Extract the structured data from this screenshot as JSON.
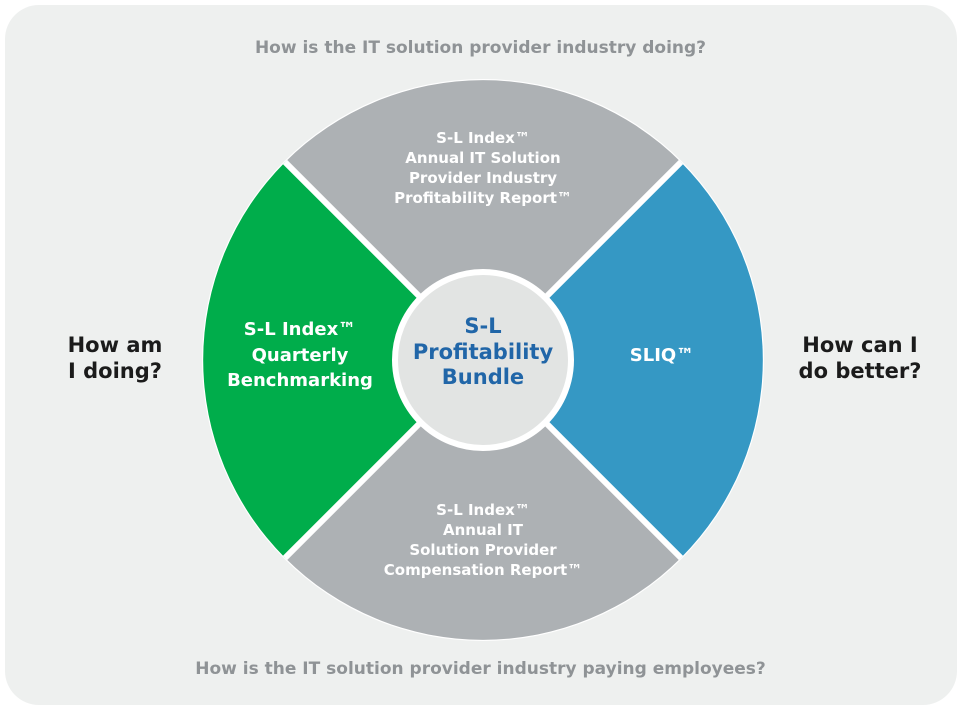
{
  "questions": {
    "top": "How is the IT solution provider industry doing?",
    "bottom": "How is the IT solution provider industry paying employees?",
    "left_line1": "How am",
    "left_line2": "I doing?",
    "right_line1": "How can I",
    "right_line2": "do better?"
  },
  "center": {
    "line1": "S-L",
    "line2": "Profitability",
    "line3": "Bundle"
  },
  "segments": {
    "top": {
      "line1": "S-L Index™",
      "line2": "Annual IT Solution",
      "line3": "Provider Industry",
      "line4": "Profitability Report™"
    },
    "left": {
      "line1": "S-L Index™",
      "line2": "Quarterly",
      "line3": "Benchmarking"
    },
    "right": {
      "line1": "SLIQ™"
    },
    "bottom": {
      "line1": "S-L Index™",
      "line2": "Annual IT",
      "line3": "Solution Provider",
      "line4": "Compensation Report™"
    }
  },
  "colors": {
    "panel": "#eef0ef",
    "gray_segment": "#adb1b4",
    "green_segment": "#00ad4b",
    "blue_segment": "#3598c4",
    "center_fill": "#e2e4e3",
    "center_text": "#2166a8",
    "question_gray": "#8f9396",
    "question_dark": "#1b1b1b"
  }
}
